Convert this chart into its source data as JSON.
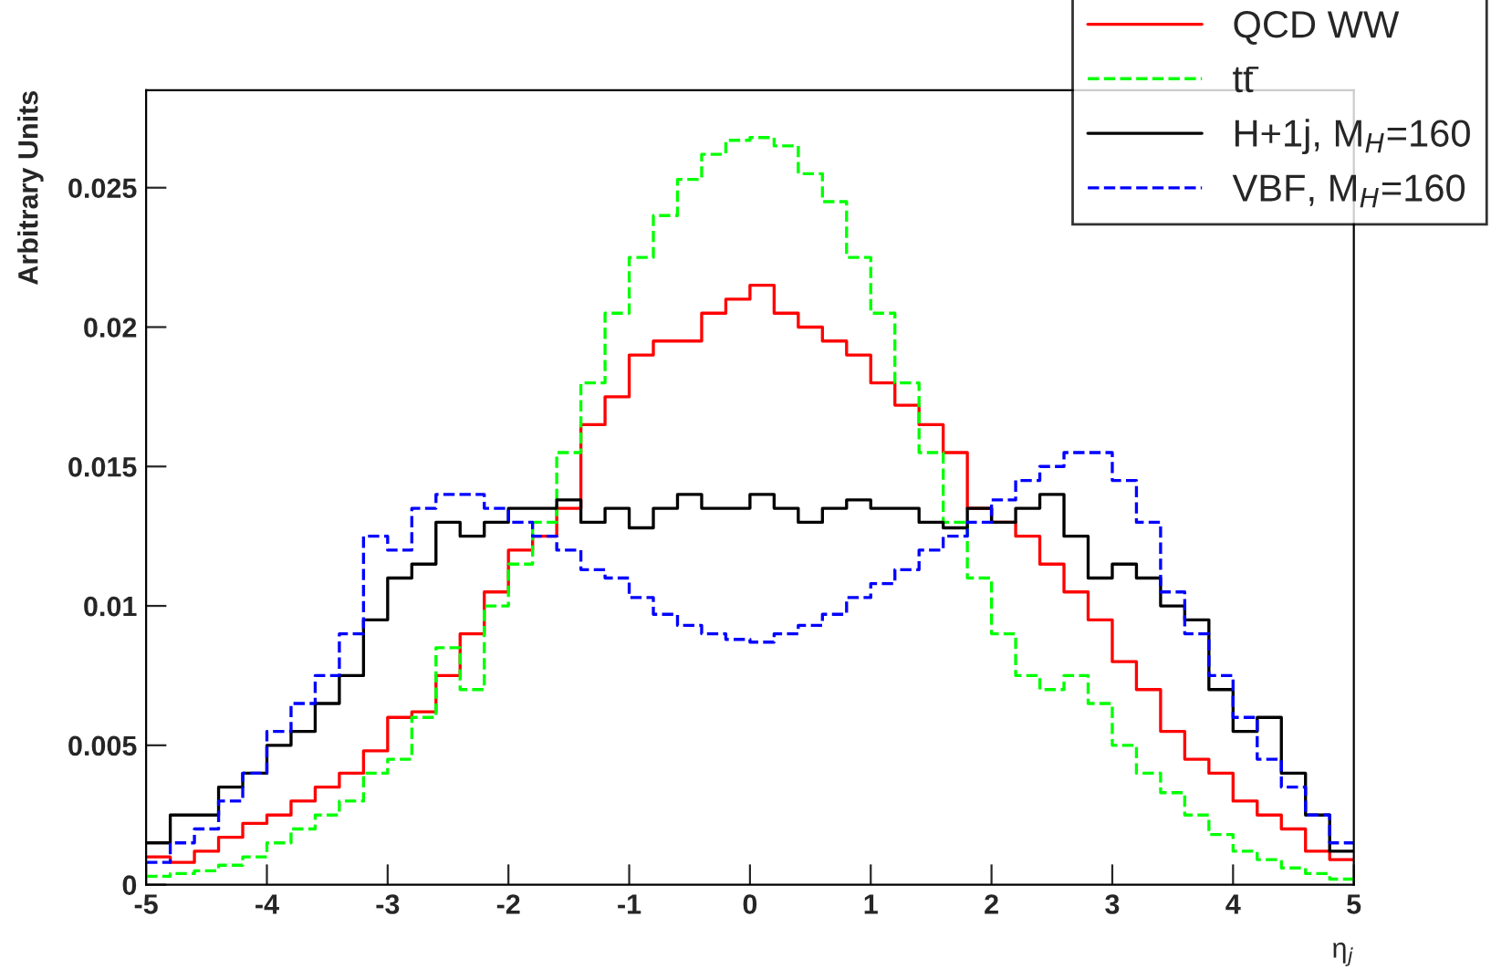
{
  "chart_data": {
    "type": "step",
    "xlabel": "η$_{j}$",
    "ylabel": "Arbitrary Units",
    "xlim": [
      -5,
      5
    ],
    "ylim": [
      0,
      0.0285
    ],
    "xticks": [
      -5,
      -4,
      -3,
      -2,
      -1,
      0,
      1,
      2,
      3,
      4,
      5
    ],
    "yticks": [
      0,
      0.005,
      0.01,
      0.015,
      0.02,
      0.025
    ],
    "grid": false,
    "legend": "top right",
    "x": [
      -5,
      -4.8,
      -4.6,
      -4.4,
      -4.2,
      -4,
      -3.8,
      -3.6,
      -3.4,
      -3.2,
      -3,
      -2.8,
      -2.6,
      -2.4,
      -2.2,
      -2,
      -1.8,
      -1.6,
      -1.4,
      -1.2,
      -1,
      -0.8,
      -0.6,
      -0.4,
      -0.2,
      0,
      0.2,
      0.4,
      0.6,
      0.8,
      1,
      1.2,
      1.4,
      1.6,
      1.8,
      2,
      2.2,
      2.4,
      2.6,
      2.8,
      3,
      3.2,
      3.4,
      3.6,
      3.8,
      4,
      4.2,
      4.4,
      4.6,
      4.8,
      5
    ],
    "series": [
      {
        "name": "QCD WW",
        "color": "#ff0000",
        "line_style": "solid",
        "values": [
          0.001,
          0.0008,
          0.0012,
          0.0017,
          0.0022,
          0.0025,
          0.003,
          0.0035,
          0.004,
          0.0048,
          0.006,
          0.0062,
          0.0075,
          0.009,
          0.0105,
          0.012,
          0.0125,
          0.0135,
          0.0165,
          0.0175,
          0.019,
          0.0195,
          0.0195,
          0.0205,
          0.021,
          0.0215,
          0.0205,
          0.02,
          0.0195,
          0.019,
          0.018,
          0.0172,
          0.0165,
          0.0155,
          0.0135,
          0.013,
          0.0125,
          0.0115,
          0.0105,
          0.0095,
          0.008,
          0.007,
          0.0055,
          0.0045,
          0.004,
          0.003,
          0.0025,
          0.002,
          0.0012,
          0.0009,
          0.0009
        ]
      },
      {
        "name": "tt̄",
        "color": "#00ff00",
        "line_style": "dashed",
        "values": [
          0.0003,
          0.0004,
          0.0005,
          0.0007,
          0.001,
          0.0015,
          0.002,
          0.0025,
          0.003,
          0.004,
          0.0045,
          0.006,
          0.0085,
          0.007,
          0.01,
          0.0115,
          0.013,
          0.0155,
          0.018,
          0.0205,
          0.0225,
          0.024,
          0.0253,
          0.0262,
          0.0267,
          0.0268,
          0.0265,
          0.0255,
          0.0245,
          0.0225,
          0.0205,
          0.018,
          0.0155,
          0.013,
          0.011,
          0.009,
          0.0075,
          0.007,
          0.0075,
          0.0065,
          0.005,
          0.004,
          0.0033,
          0.0025,
          0.0018,
          0.0012,
          0.0009,
          0.0006,
          0.0004,
          0.0002,
          0.0002
        ]
      },
      {
        "name": "H+1j, M$_{H}$=160",
        "color": "#000000",
        "line_style": "solid",
        "values": [
          0.0015,
          0.0025,
          0.0025,
          0.0035,
          0.004,
          0.005,
          0.0055,
          0.0065,
          0.0075,
          0.0095,
          0.011,
          0.0115,
          0.013,
          0.0125,
          0.013,
          0.0135,
          0.0135,
          0.0138,
          0.013,
          0.0135,
          0.0128,
          0.0135,
          0.014,
          0.0135,
          0.0135,
          0.014,
          0.0135,
          0.013,
          0.0135,
          0.0138,
          0.0135,
          0.0135,
          0.013,
          0.0128,
          0.0135,
          0.013,
          0.0135,
          0.014,
          0.0125,
          0.011,
          0.0115,
          0.011,
          0.01,
          0.0095,
          0.007,
          0.0055,
          0.006,
          0.004,
          0.0025,
          0.0012,
          0.0012
        ]
      },
      {
        "name": "VBF, M$_{H}$=160",
        "color": "#0000ff",
        "line_style": "dashed",
        "values": [
          0.0008,
          0.0015,
          0.002,
          0.003,
          0.004,
          0.0055,
          0.0065,
          0.0075,
          0.009,
          0.0125,
          0.012,
          0.0135,
          0.014,
          0.014,
          0.0135,
          0.013,
          0.0125,
          0.012,
          0.0113,
          0.011,
          0.0103,
          0.0097,
          0.0093,
          0.009,
          0.0088,
          0.0087,
          0.009,
          0.0093,
          0.0097,
          0.0103,
          0.0108,
          0.0113,
          0.012,
          0.0125,
          0.013,
          0.0138,
          0.0145,
          0.015,
          0.0155,
          0.0155,
          0.0145,
          0.013,
          0.0105,
          0.009,
          0.0075,
          0.006,
          0.0045,
          0.0035,
          0.0025,
          0.0015,
          0.0015
        ]
      }
    ]
  }
}
